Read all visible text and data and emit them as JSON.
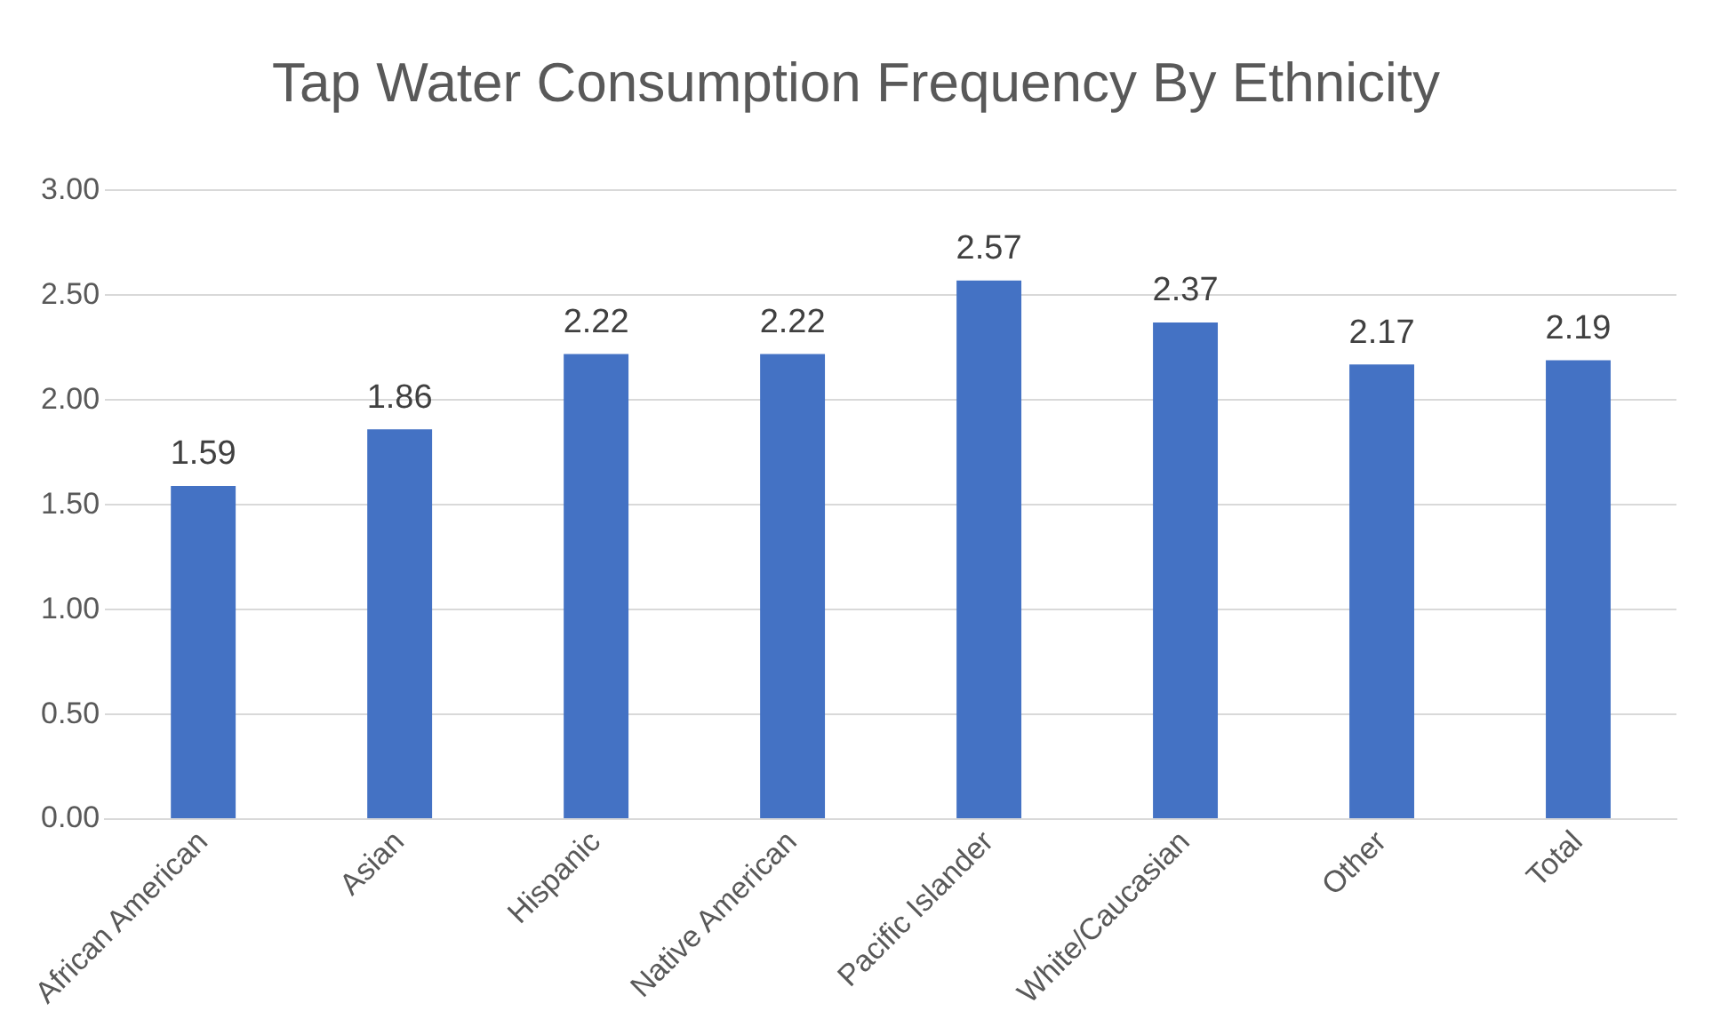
{
  "chart_data": {
    "type": "bar",
    "title": "Tap Water Consumption Frequency By Ethnicity",
    "categories": [
      "African American",
      "Asian",
      "Hispanic",
      "Native American",
      "Pacific Islander",
      "White/Caucasian",
      "Other",
      "Total"
    ],
    "values": [
      1.59,
      1.86,
      2.22,
      2.22,
      2.57,
      2.37,
      2.17,
      2.19
    ],
    "color": "#4472c4",
    "ylim": [
      0,
      3
    ],
    "yticks": [
      {
        "value": 0,
        "label": "0.00"
      },
      {
        "value": 0.5,
        "label": "0.50"
      },
      {
        "value": 1,
        "label": "1.00"
      },
      {
        "value": 1.5,
        "label": "1.50"
      },
      {
        "value": 2,
        "label": "2.00"
      },
      {
        "value": 2.5,
        "label": "2.50"
      },
      {
        "value": 3,
        "label": "3.00"
      }
    ],
    "grid": "y",
    "data_labels": true
  }
}
